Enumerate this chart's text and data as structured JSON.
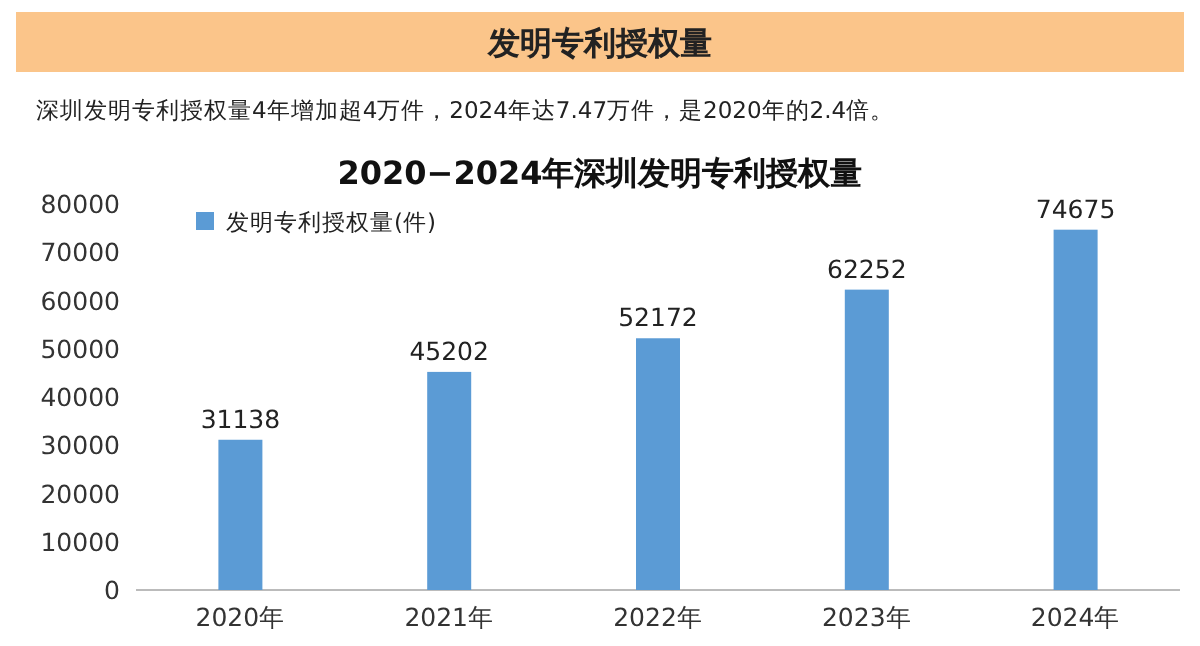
{
  "chart_data": {
    "type": "bar",
    "title": "发明专利授权量",
    "subtitle": "深圳发明专利授权量4年增加超4万件，2024年达7.47万件，是2020年的2.4倍。",
    "annotations": [
      "2020−2024年深圳发明专利授权量"
    ],
    "categories": [
      "2020年",
      "2021年",
      "2022年",
      "2023年",
      "2024年"
    ],
    "series": [
      {
        "name": "发明专利授权量(件)",
        "color": "#5b9bd5",
        "values": [
          31138,
          45202,
          52172,
          62252,
          74675
        ]
      }
    ],
    "ylim": [
      0,
      80000
    ],
    "yticks": [
      0,
      10000,
      20000,
      30000,
      40000,
      50000,
      60000,
      70000,
      80000
    ],
    "data_labels": true,
    "legend": "top left",
    "grid": false
  }
}
